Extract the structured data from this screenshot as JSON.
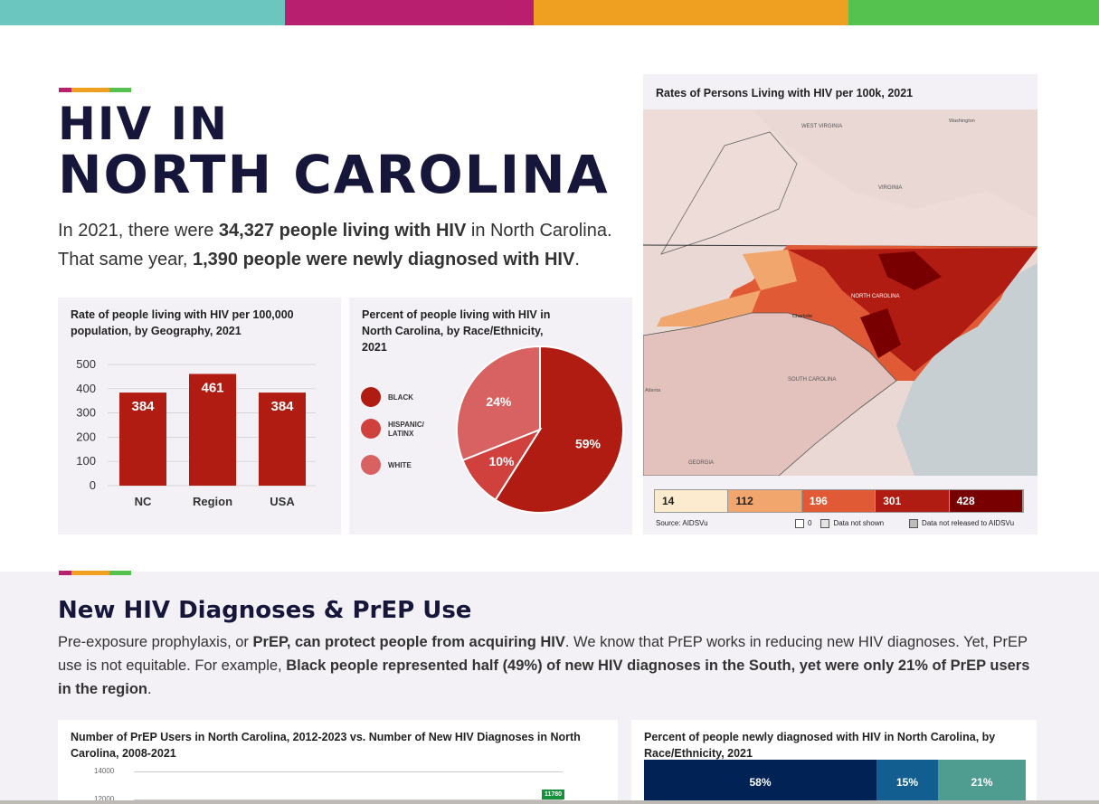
{
  "colors": {
    "teal": "#6cc6c0",
    "magenta": "#b81f6e",
    "orange": "#f0a020",
    "green": "#55c24f",
    "navy": "#16163a",
    "red": "#b01c12"
  },
  "header": {
    "title_line1": "HIV IN",
    "title_line2": "NORTH CAROLINA"
  },
  "intro": {
    "p1_a": "In 2021, there were ",
    "p1_b": "34,327 people living with HIV",
    "p1_c": " in North Carolina.",
    "p2_a": "That same year, ",
    "p2_b": "1,390 people were newly diagnosed with HIV",
    "p2_c": "."
  },
  "chart_data": [
    {
      "type": "bar",
      "title": "Rate of people living with HIV per 100,000 population, by Geography, 2021",
      "categories": [
        "NC",
        "Region",
        "USA"
      ],
      "values": [
        384,
        461,
        384
      ],
      "yticks": [
        0,
        100,
        200,
        300,
        400,
        500
      ],
      "ylim": [
        0,
        500
      ],
      "grid": true,
      "color": "#b01c12"
    },
    {
      "type": "pie",
      "title": "Percent of people living with HIV in North Carolina, by Race/Ethnicity, 2021",
      "slices": [
        {
          "name": "BLACK",
          "value": 59,
          "label": "59%",
          "color": "#b01c12"
        },
        {
          "name": "HISPANIC/ LATINX",
          "value": 10,
          "label": "10%",
          "color": "#d0413e"
        },
        {
          "name": "WHITE",
          "value": 24,
          "label": "24%",
          "color": "#d86262"
        }
      ],
      "legend": "left"
    },
    {
      "type": "line",
      "title": "Number of PrEP Users in North Carolina, 2012-2023 vs. Number of New HIV Diagnoses in North Carolina, 2008-2021",
      "yticks": [
        "14000",
        "12000"
      ],
      "data_labels": [
        "11780"
      ]
    },
    {
      "type": "bar",
      "orientation": "horizontal-stacked",
      "title": "Percent of people newly diagnosed with HIV in North Carolina, by Race/Ethnicity, 2021",
      "values": [
        58,
        15,
        21
      ],
      "labels": [
        "58%",
        "15%",
        "21%"
      ],
      "colors": [
        "#002255",
        "#135e91",
        "#4f9c91"
      ]
    }
  ],
  "map": {
    "title": "Rates of Persons Living with HIV per 100k, 2021",
    "labels": [
      "WEST VIRGINIA",
      "VIRGINIA",
      "NORTH CAROLINA",
      "SOUTH CAROLINA",
      "GEORGIA",
      "Charlotte",
      "Atlanta",
      "Washington"
    ],
    "legend": [
      {
        "value": "14",
        "color": "#fdebd0",
        "text": "#222"
      },
      {
        "value": "112",
        "color": "#f0a66c",
        "text": "#222"
      },
      {
        "value": "196",
        "color": "#e05a35",
        "text": "#fff"
      },
      {
        "value": "301",
        "color": "#b01c12",
        "text": "#fff"
      },
      {
        "value": "428",
        "color": "#780000",
        "text": "#fff"
      }
    ],
    "source": "Source: AIDSVu",
    "key_zero": "0",
    "key_not_shown": "Data not shown",
    "key_not_released": "Data not released to AIDSVu"
  },
  "section2": {
    "title": "New HIV Diagnoses & PrEP Use",
    "p_a": "Pre-exposure prophylaxis, or ",
    "p_b": "PrEP, can protect people from acquiring HIV",
    "p_c": ". We know that PrEP works in reducing new HIV diagnoses. Yet, PrEP use is not equitable. For example, ",
    "p_d": "Black people represented half (49%) of new HIV diagnoses in the South, yet were only 21% of PrEP users in the region",
    "p_e": "."
  }
}
